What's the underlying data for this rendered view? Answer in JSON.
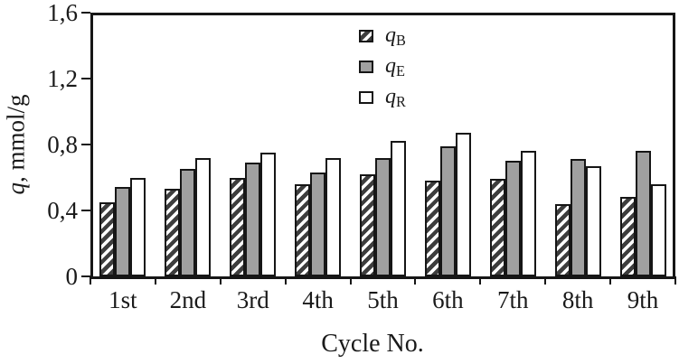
{
  "chart_data": {
    "type": "bar",
    "title": "",
    "categories": [
      "1st",
      "2nd",
      "3rd",
      "4th",
      "5th",
      "6th",
      "7th",
      "8th",
      "9th"
    ],
    "series": [
      {
        "name": "q_B",
        "label": {
          "var": "q",
          "sub": "B"
        },
        "style": "hatched",
        "values": [
          0.45,
          0.53,
          0.6,
          0.56,
          0.62,
          0.58,
          0.59,
          0.44,
          0.48
        ]
      },
      {
        "name": "q_E",
        "label": {
          "var": "q",
          "sub": "E"
        },
        "style": "gray",
        "values": [
          0.54,
          0.65,
          0.69,
          0.63,
          0.72,
          0.79,
          0.7,
          0.71,
          0.76
        ]
      },
      {
        "name": "q_R",
        "label": {
          "var": "q",
          "sub": "R"
        },
        "style": "white",
        "values": [
          0.6,
          0.72,
          0.75,
          0.72,
          0.82,
          0.87,
          0.76,
          0.67,
          0.56
        ]
      }
    ],
    "xlabel": "Cycle No.",
    "ylabel": "q, mmol/g",
    "ylabel_var": "q",
    "ylabel_rest": ", mmol/g",
    "ylim": [
      0,
      1.6
    ],
    "ytick_values": [
      0,
      0.4,
      0.8,
      1.2,
      1.6
    ],
    "ytick_labels": [
      "0",
      "0,4",
      "0,8",
      "1,2",
      "1,6"
    ],
    "grid": false,
    "legend_position": "top-center-inside",
    "colors": {
      "background": "#ffffff",
      "line": "#161616",
      "gray_fill": "#a0a0a0",
      "white_fill": "#ffffff",
      "hatch_dark": "#3d3d3d",
      "hatch_light": "#ffffff"
    }
  }
}
